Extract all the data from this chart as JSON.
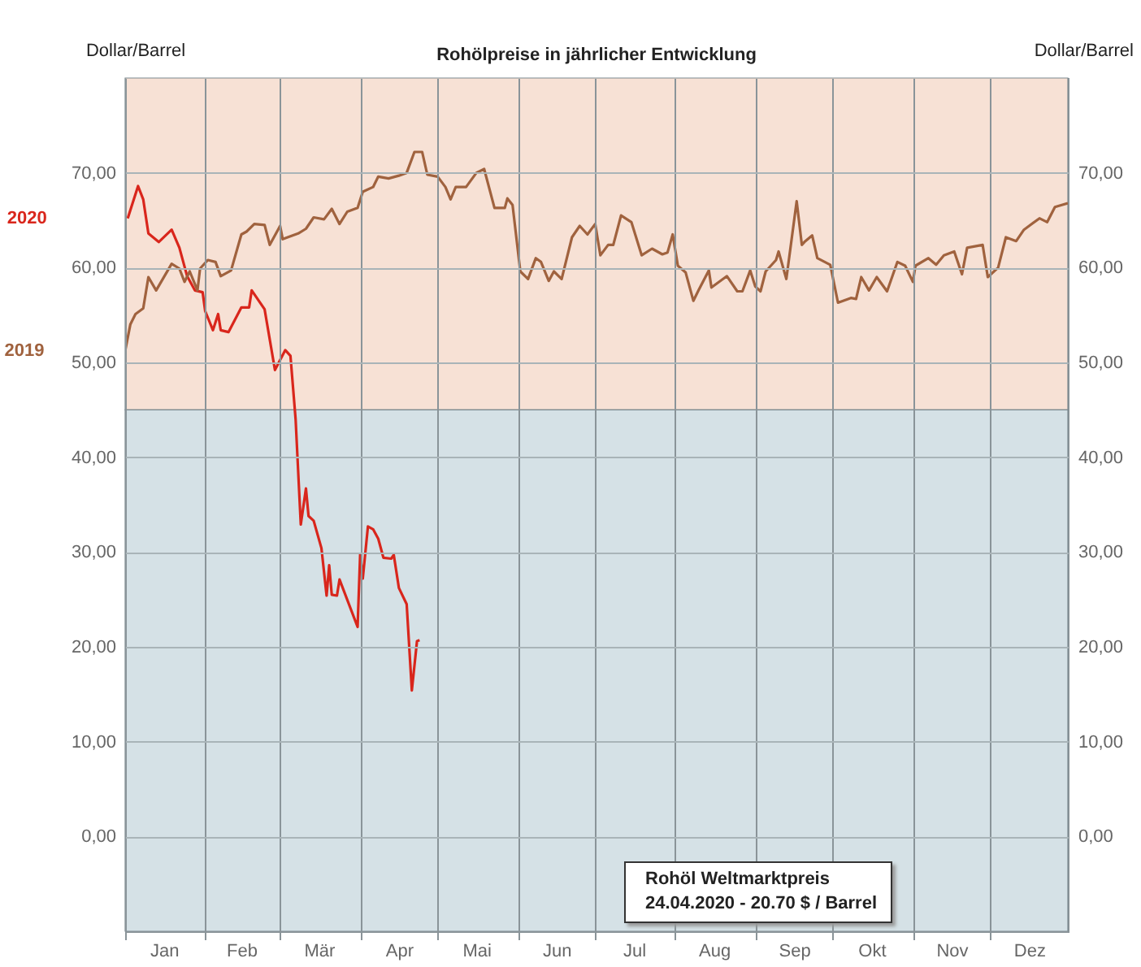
{
  "chart_data": {
    "type": "line",
    "title": "Rohölpreise in jährlicher Entwicklung",
    "ylabel": "Dollar/Barrel",
    "y2label": "Dollar/Barrel",
    "annotations": [
      "Rohöl Weltmarktpreis",
      "24.04.2020 - 20.70 $ / Barrel"
    ],
    "xlim": [
      "--01-01",
      "--12-31"
    ],
    "xticks": [
      {
        "value": "--01-01",
        "label": null
      },
      {
        "value": "--01-16",
        "label": "Jan"
      },
      {
        "value": "--02-01",
        "label": null
      },
      {
        "value": "--02-15",
        "label": "Feb"
      },
      {
        "value": "--03-01",
        "label": null
      },
      {
        "value": "--03-16",
        "label": "Mär"
      },
      {
        "value": "--04-01",
        "label": null
      },
      {
        "value": "--04-16",
        "label": "Apr"
      },
      {
        "value": "--05-01",
        "label": null
      },
      {
        "value": "--05-16",
        "label": "Mai"
      },
      {
        "value": "--06-01",
        "label": null
      },
      {
        "value": "--06-16",
        "label": "Jun"
      },
      {
        "value": "--07-01",
        "label": null
      },
      {
        "value": "--07-16",
        "label": "Jul"
      },
      {
        "value": "--08-01",
        "label": null
      },
      {
        "value": "--08-16",
        "label": "Aug"
      },
      {
        "value": "--09-01",
        "label": null
      },
      {
        "value": "--09-16",
        "label": "Sep"
      },
      {
        "value": "--10-01",
        "label": null
      },
      {
        "value": "--10-16",
        "label": "Okt"
      },
      {
        "value": "--11-01",
        "label": null
      },
      {
        "value": "--11-16",
        "label": "Nov"
      },
      {
        "value": "--12-01",
        "label": null
      },
      {
        "value": "--12-16",
        "label": "Dez"
      }
    ],
    "ylim": [
      -10,
      80
    ],
    "yticks": [
      {
        "value": 0,
        "label": "0,00"
      },
      {
        "value": 10,
        "label": "10,00"
      },
      {
        "value": 20,
        "label": "20,00"
      },
      {
        "value": 30,
        "label": "30,00"
      },
      {
        "value": 40,
        "label": "40,00"
      },
      {
        "value": 50,
        "label": "50,00"
      },
      {
        "value": 60,
        "label": "60,00"
      },
      {
        "value": 70,
        "label": "70,00"
      }
    ],
    "y2lim": [
      -10,
      80
    ],
    "y2ticks": [
      {
        "value": 0,
        "label": "0,00"
      },
      {
        "value": 10,
        "label": "10,00"
      },
      {
        "value": 20,
        "label": "20,00"
      },
      {
        "value": 30,
        "label": "30,00"
      },
      {
        "value": 40,
        "label": "40,00"
      },
      {
        "value": 50,
        "label": "50,00"
      },
      {
        "value": 60,
        "label": "60,00"
      },
      {
        "value": 70,
        "label": "70,00"
      }
    ],
    "bands": [
      {
        "axis": "y",
        "from": 45,
        "to": 80,
        "color": "#f7e1d5"
      },
      {
        "axis": "y",
        "from": -10,
        "to": 45,
        "color": "#d5e1e6"
      }
    ],
    "grid": true,
    "marker": "none",
    "line_style": "solid",
    "series": [
      {
        "name": "2020",
        "color": "#d9261c",
        "x": [
          "--01-02",
          "--01-06",
          "--01-08",
          "--01-10",
          "--01-14",
          "--01-19",
          "--01-22",
          "--01-25",
          "--01-28",
          "--01-31",
          "--02-01",
          "--02-04",
          "--02-06",
          "--02-07",
          "--02-10",
          "--02-15",
          "--02-18",
          "--02-19",
          "--02-24",
          "--02-28",
          "--03-03",
          "--03-05",
          "--03-07",
          "--03-09",
          "--03-11",
          "--03-12",
          "--03-14",
          "--03-17",
          "--03-19",
          "--03-20",
          "--03-21",
          "--03-23",
          "--03-24",
          "--03-31",
          "--04-01",
          "--04-02",
          "--04-04",
          "--04-06",
          "--04-08",
          "--04-10",
          "--04-13",
          "--04-14",
          "--04-16",
          "--04-19",
          "--04-21",
          "--04-23",
          "--04-24"
        ],
        "values": [
          65.2,
          68.6,
          67.2,
          63.6,
          62.7,
          64.0,
          62.1,
          59.1,
          57.6,
          57.4,
          55.4,
          53.4,
          55.1,
          53.4,
          53.2,
          55.8,
          55.8,
          57.6,
          55.6,
          49.2,
          51.3,
          50.7,
          44,
          32.9,
          36.7,
          33.8,
          33.3,
          30.4,
          25.4,
          28.6,
          25.5,
          25.4,
          27.1,
          22.1,
          29.8,
          27.2,
          32.7,
          32.4,
          31.4,
          29.4,
          29.3,
          29.7,
          26.2,
          24.5,
          15.4,
          20.6,
          20.7
        ]
      },
      {
        "name": "2019",
        "color": "#a0623e",
        "x": [
          "--01-01",
          "--01-03",
          "--01-05",
          "--01-08",
          "--01-10",
          "--01-13",
          "--01-19",
          "--01-22",
          "--01-24",
          "--01-26",
          "--01-29",
          "--01-30",
          "--02-02",
          "--02-05",
          "--02-07",
          "--02-11",
          "--02-15",
          "--02-17",
          "--02-20",
          "--02-24",
          "--02-26",
          "--03-01",
          "--03-02",
          "--03-08",
          "--03-11",
          "--03-14",
          "--03-18",
          "--03-21",
          "--03-24",
          "--03-27",
          "--03-31",
          "--04-02",
          "--04-06",
          "--04-08",
          "--04-12",
          "--04-16",
          "--04-19",
          "--04-22",
          "--04-25",
          "--04-27",
          "--05-01",
          "--05-04",
          "--05-06",
          "--05-08",
          "--05-12",
          "--05-16",
          "--05-19",
          "--05-23",
          "--05-27",
          "--05-28",
          "--05-30",
          "--06-02",
          "--06-05",
          "--06-08",
          "--06-10",
          "--06-13",
          "--06-15",
          "--06-18",
          "--06-22",
          "--06-25",
          "--06-28",
          "--07-01",
          "--07-03",
          "--07-06",
          "--07-08",
          "--07-11",
          "--07-15",
          "--07-19",
          "--07-23",
          "--07-27",
          "--07-29",
          "--07-31",
          "--08-02",
          "--08-05",
          "--08-08",
          "--08-10",
          "--08-14",
          "--08-15",
          "--08-21",
          "--08-25",
          "--08-27",
          "--08-30",
          "--09-01",
          "--09-03",
          "--09-05",
          "--09-09",
          "--09-10",
          "--09-13",
          "--09-17",
          "--09-19",
          "--09-20",
          "--09-23",
          "--09-25",
          "--09-30",
          "--10-03",
          "--10-08",
          "--10-10",
          "--10-12",
          "--10-15",
          "--10-18",
          "--10-22",
          "--10-26",
          "--10-29",
          "--11-01",
          "--11-02",
          "--11-07",
          "--11-10",
          "--11-13",
          "--11-17",
          "--11-20",
          "--11-22",
          "--11-28",
          "--11-30",
          "--12-04",
          "--12-07",
          "--12-11",
          "--12-14",
          "--12-20",
          "--12-23",
          "--12-26",
          "--12-31"
        ],
        "values": [
          51.2,
          54,
          55.1,
          55.7,
          59,
          57.6,
          60.4,
          59.9,
          58.5,
          59.6,
          57.6,
          59.9,
          60.8,
          60.6,
          59.1,
          59.7,
          63.5,
          63.8,
          64.6,
          64.5,
          62.4,
          64.4,
          63,
          63.6,
          64.1,
          65.3,
          65.1,
          66.2,
          64.6,
          65.9,
          66.3,
          68,
          68.5,
          69.6,
          69.4,
          69.7,
          70,
          72.2,
          72.2,
          69.8,
          69.6,
          68.5,
          67.2,
          68.5,
          68.5,
          70,
          70.4,
          66.3,
          66.3,
          67.3,
          66.6,
          59.6,
          58.8,
          61,
          60.6,
          58.6,
          59.6,
          58.8,
          63.2,
          64.4,
          63.5,
          64.6,
          61.3,
          62.4,
          62.4,
          65.5,
          64.8,
          61.3,
          62,
          61.4,
          61.6,
          63.5,
          60.2,
          59.5,
          56.5,
          57.6,
          59.7,
          57.9,
          59.1,
          57.5,
          57.5,
          59.7,
          58,
          57.5,
          59.6,
          60.8,
          61.7,
          58.8,
          67,
          62.4,
          62.7,
          63.4,
          61,
          60.3,
          56.3,
          56.8,
          56.7,
          59,
          57.6,
          59,
          57.5,
          60.6,
          60.2,
          58.5,
          60.2,
          61,
          60.3,
          61.3,
          61.7,
          59.3,
          62.1,
          62.4,
          59,
          60,
          63.2,
          62.8,
          64,
          65.2,
          64.8,
          66.4,
          66.8
        ]
      }
    ]
  }
}
